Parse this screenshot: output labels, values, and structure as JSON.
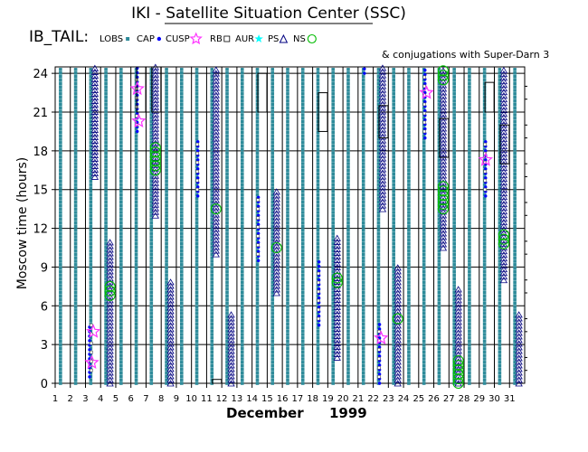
{
  "chart_data": {
    "type": "scatter",
    "title": "IKI - Satellite Situation Center (SSC)",
    "subtitle": "& conjugations with Super-Darn 3",
    "satellite": "IB_TAIL:",
    "xlabel_month": "December",
    "xlabel_year": "1999",
    "ylabel": "Moscow time (hours)",
    "xlim": [
      1,
      31
    ],
    "ylim": [
      0,
      24.5
    ],
    "yticks": [
      0,
      3,
      6,
      9,
      12,
      15,
      18,
      21,
      24
    ],
    "xticks": [
      1,
      2,
      3,
      4,
      5,
      6,
      7,
      8,
      9,
      10,
      11,
      12,
      13,
      14,
      15,
      16,
      17,
      18,
      19,
      20,
      21,
      22,
      23,
      24,
      25,
      26,
      27,
      28,
      29,
      30,
      31
    ],
    "legend": [
      {
        "label": "LOBS",
        "symbol": "lobs",
        "color": "#2e8b9a"
      },
      {
        "label": "CAP",
        "symbol": "cap",
        "color": "#0000ff"
      },
      {
        "label": "CUSP",
        "symbol": "cusp",
        "color": "#ff33ff"
      },
      {
        "label": "RB",
        "symbol": "rb",
        "color": "#000000"
      },
      {
        "label": "AUR",
        "symbol": "aur",
        "color": "#00ffff"
      },
      {
        "label": "PS",
        "symbol": "ps",
        "color": "#000080"
      },
      {
        "label": "NS",
        "symbol": "ns",
        "color": "#00bb00"
      }
    ],
    "colors": {
      "lobs": "#2e8b9a",
      "cap": "#0000ff",
      "cusp": "#ff33ff",
      "aur": "#00ffff",
      "ps": "#000080",
      "ns": "#00bb00",
      "rb": "#000000"
    },
    "series": {
      "lobs": [
        [
          1,
          0,
          24.5
        ],
        [
          2,
          0,
          24.5
        ],
        [
          3,
          0,
          24.5
        ],
        [
          4,
          0,
          24.5
        ],
        [
          5,
          0,
          24.5
        ],
        [
          6,
          0,
          24.5
        ],
        [
          7,
          0,
          24.5
        ],
        [
          8,
          0,
          24.5
        ],
        [
          9,
          0,
          24.5
        ],
        [
          10,
          0,
          24.5
        ],
        [
          11,
          0,
          24.5
        ],
        [
          12,
          0,
          24.5
        ],
        [
          13,
          0,
          24.5
        ],
        [
          14,
          0,
          24.5
        ],
        [
          15,
          0,
          24.5
        ],
        [
          16,
          0,
          24.5
        ],
        [
          17,
          0,
          24.5
        ],
        [
          18,
          0,
          24.5
        ],
        [
          19,
          0,
          24.5
        ],
        [
          20,
          0,
          24.5
        ],
        [
          21,
          0,
          24.5
        ],
        [
          22,
          0,
          24.5
        ],
        [
          23,
          0,
          24.5
        ],
        [
          24,
          0,
          24.5
        ],
        [
          25,
          0,
          24.5
        ],
        [
          26,
          0,
          24.5
        ],
        [
          27,
          0,
          24.5
        ],
        [
          28,
          0,
          24.5
        ],
        [
          29,
          0,
          24.5
        ],
        [
          30,
          0,
          24.5
        ],
        [
          31,
          0,
          24.5
        ]
      ],
      "ps": [
        [
          3.5,
          16,
          24.5
        ],
        [
          4.5,
          0,
          11
        ],
        [
          7.5,
          13,
          24.5
        ],
        [
          8.5,
          0,
          8
        ],
        [
          11.5,
          10,
          24.5
        ],
        [
          12.5,
          0,
          5.5
        ],
        [
          15.5,
          7,
          15
        ],
        [
          19.5,
          2,
          11.5
        ],
        [
          22.5,
          13.5,
          24.5
        ],
        [
          23.5,
          0,
          9
        ],
        [
          26.5,
          10.5,
          24.5
        ],
        [
          27.5,
          0,
          7.5
        ],
        [
          30.5,
          8,
          24.5
        ],
        [
          31.5,
          0,
          5.5
        ]
      ],
      "cap": [
        [
          3.15,
          0.5,
          4.5
        ],
        [
          6.3,
          19.5,
          24.5
        ],
        [
          10.3,
          14.5,
          19
        ],
        [
          14.3,
          9.5,
          14.5
        ],
        [
          18.3,
          4.5,
          9.5
        ],
        [
          22.3,
          0,
          4.8
        ],
        [
          25.3,
          19,
          24.5
        ],
        [
          29.3,
          14.5,
          19
        ],
        [
          21.3,
          24,
          24.5
        ]
      ],
      "aur": [
        [
          3.2,
          1,
          4.5
        ],
        [
          6.2,
          20,
          24
        ],
        [
          10.2,
          15,
          19
        ],
        [
          14.2,
          10,
          14.5
        ],
        [
          18.2,
          5,
          9
        ],
        [
          22.2,
          0.5,
          4.5
        ],
        [
          25.2,
          19.5,
          24
        ],
        [
          29.2,
          15,
          18.5
        ]
      ],
      "rb": [
        [
          6.5,
          21,
          24.5
        ],
        [
          7.5,
          21,
          24.5
        ],
        [
          11.5,
          0,
          0.3
        ],
        [
          14.5,
          21,
          24
        ],
        [
          18.5,
          19.5,
          22.5
        ],
        [
          22.5,
          19,
          21.5
        ],
        [
          26.5,
          17.5,
          20.5
        ],
        [
          29.5,
          21,
          23.3
        ],
        [
          30.5,
          17,
          20
        ]
      ],
      "cusp": [
        [
          3.4,
          4
        ],
        [
          3.3,
          1.6
        ],
        [
          6.3,
          22.8
        ],
        [
          6.4,
          20.3
        ],
        [
          22.4,
          3.5
        ],
        [
          25.4,
          22.5
        ],
        [
          29.3,
          17.3
        ]
      ],
      "ns": [
        [
          7.5,
          16.5,
          18.5
        ],
        [
          11.5,
          13.5,
          13.5
        ],
        [
          4.5,
          6.8,
          7.8
        ],
        [
          15.5,
          10.5,
          10.5
        ],
        [
          19.5,
          7.8,
          8.4
        ],
        [
          23.5,
          5,
          5
        ],
        [
          26.5,
          13.5,
          15.5
        ],
        [
          26.5,
          23.5,
          24.5
        ],
        [
          27.5,
          0,
          2
        ],
        [
          30.5,
          10.8,
          11.5
        ]
      ]
    }
  }
}
